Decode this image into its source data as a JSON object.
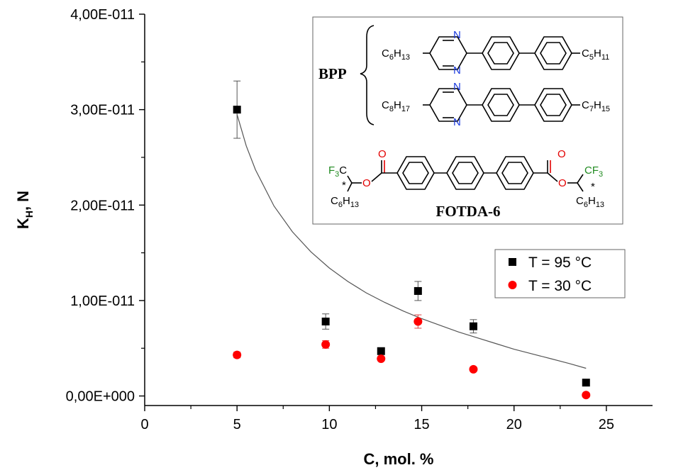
{
  "chart_data": {
    "type": "scatter",
    "xlabel": "C, mol. %",
    "ylabel": "K",
    "ylabel_sub": "H",
    "ylabel_suffix": ", N",
    "xlim": [
      0,
      27.5
    ],
    "ylim": [
      -1e-12,
      4e-11
    ],
    "x_ticks": [
      0,
      5,
      10,
      15,
      20,
      25
    ],
    "x_tick_labels": [
      "0",
      "5",
      "10",
      "15",
      "20",
      "25"
    ],
    "y_ticks": [
      0,
      1e-11,
      2e-11,
      3e-11,
      4e-11
    ],
    "y_tick_labels": [
      "0,00E+000",
      "1,00E-011",
      "2,00E-011",
      "3,00E-011",
      "4,00E-011"
    ],
    "grid": false,
    "legend_position": "right, middle",
    "series": [
      {
        "name": "T = 95 °C",
        "marker": "square",
        "color": "#000000",
        "x": [
          5.0,
          9.8,
          12.8,
          14.8,
          17.8,
          23.9
        ],
        "y": [
          3e-11,
          7.8e-12,
          4.7e-12,
          1.1e-11,
          7.3e-12,
          1.4e-12
        ],
        "error": [
          3e-12,
          8e-13,
          3e-13,
          1e-12,
          7e-13,
          2e-13
        ]
      },
      {
        "name": "T = 30 °C",
        "marker": "circle",
        "color": "#ff0000",
        "x": [
          5.0,
          9.8,
          12.8,
          14.8,
          17.8,
          23.9
        ],
        "y": [
          4.3e-12,
          5.4e-12,
          3.9e-12,
          7.8e-12,
          2.8e-12,
          1e-13
        ],
        "error": [
          3e-13,
          4e-13,
          2e-13,
          7e-13,
          2e-13,
          1e-13
        ]
      }
    ],
    "fit_curve": {
      "color": "#555555",
      "x": [
        5.0,
        5.5,
        6.0,
        7.0,
        8.0,
        9.0,
        10.0,
        11.0,
        12.0,
        13.0,
        14.0,
        15.0,
        16.0,
        17.0,
        18.0,
        19.0,
        20.0,
        21.0,
        22.0,
        23.0,
        23.9
      ],
      "y": [
        2.95e-11,
        2.62e-11,
        2.37e-11,
        1.99e-11,
        1.72e-11,
        1.51e-11,
        1.34e-11,
        1.2e-11,
        1.08e-11,
        9.8e-12,
        8.9e-12,
        8.1e-12,
        7.4e-12,
        6.7e-12,
        6.1e-12,
        5.5e-12,
        4.9e-12,
        4.4e-12,
        3.9e-12,
        3.4e-12,
        2.9e-12
      ]
    }
  },
  "inset": {
    "bpp_label": "BPP",
    "fotda_label": "FOTDA-6",
    "bpp_row1": {
      "left_base": "C",
      "left_sub1": "6",
      "left_mid": "H",
      "left_sub2": "13",
      "right_base": "C",
      "right_sub1": "5",
      "right_mid": "H",
      "right_sub2": "11"
    },
    "bpp_row2": {
      "left_base": "C",
      "left_sub1": "8",
      "left_mid": "H",
      "left_sub2": "17",
      "right_base": "C",
      "right_sub1": "7",
      "right_mid": "H",
      "right_sub2": "15"
    },
    "nitrogen": "N",
    "oxygen": "O",
    "fotda_cf3_left": {
      "base": "F",
      "sub": "3",
      "tail": "C"
    },
    "fotda_cf3_right": {
      "base": "CF",
      "sub": "3"
    },
    "fotda_chain": {
      "base": "C",
      "sub1": "6",
      "mid": "H",
      "sub2": "13"
    },
    "chiral_mark": "*"
  }
}
